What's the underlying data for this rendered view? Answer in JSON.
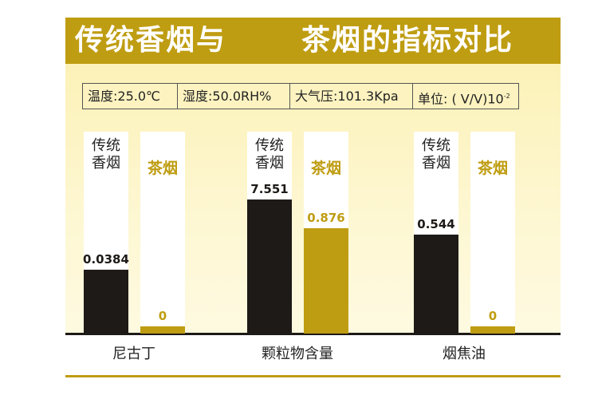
{
  "chart_data": {
    "type": "bar",
    "title": [
      "传统香烟与",
      "茶烟的指标对比"
    ],
    "conditions": [
      "温度:25.0℃",
      "湿度:50.0RH%",
      "大气压:101.3Kpa",
      "单位: ( V/V)10",
      "-2"
    ],
    "categories": [
      "尼古丁",
      "颗粒物含量",
      "烟焦油"
    ],
    "series": [
      {
        "name": "传统香烟",
        "name_lines": [
          "传统",
          "香烟"
        ],
        "color": "#1e1a17",
        "values": [
          0.0384,
          7.551,
          0.544
        ],
        "labels": [
          "0.0384",
          "7.551",
          "0.544"
        ]
      },
      {
        "name": "茶烟",
        "color": "#bf9d12",
        "values": [
          0,
          0.876,
          0
        ],
        "labels": [
          "0",
          "0.876",
          "0"
        ]
      }
    ]
  }
}
